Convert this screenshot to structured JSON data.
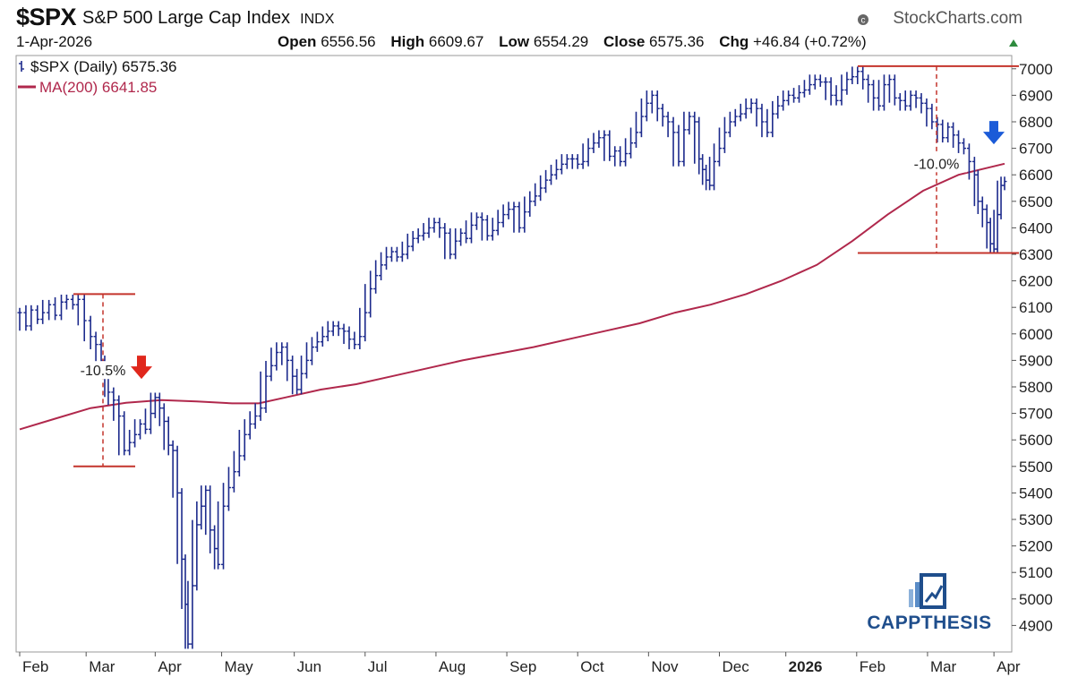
{
  "header": {
    "ticker": "$SPX",
    "name": "S&P 500 Large Cap Index",
    "exchange": "INDX",
    "brand": "StockCharts.com",
    "date": "1-Apr-2026",
    "open_label": "Open",
    "open": "6556.56",
    "high_label": "High",
    "high": "6609.67",
    "low_label": "Low",
    "low": "6554.29",
    "close_label": "Close",
    "close": "6575.36",
    "chg_label": "Chg",
    "chg": "+46.84 (+0.72%)",
    "up_color": "#2e8b3e"
  },
  "logo": {
    "text": "CAPPTHESIS",
    "icon": "bar-chart-logo-icon"
  },
  "chart_data": {
    "type": "line",
    "title": "$SPX S&P 500 Large Cap Index",
    "xlabel": "",
    "ylabel": "",
    "x_ticks": [
      "Feb",
      "Mar",
      "Apr",
      "May",
      "Jun",
      "Jul",
      "Aug",
      "Sep",
      "Oct",
      "Nov",
      "Dec",
      "2026",
      "Feb",
      "Mar",
      "Apr"
    ],
    "ylim": [
      4800,
      7050
    ],
    "y_ticks": [
      4900,
      5000,
      5100,
      5200,
      5300,
      5400,
      5500,
      5600,
      5700,
      5800,
      5900,
      6000,
      6100,
      6200,
      6300,
      6400,
      6500,
      6600,
      6700,
      6800,
      6900,
      7000
    ],
    "legend_placement": "top-left",
    "series": [
      {
        "name": "$SPX (Daily) 6575.36",
        "style": "ohlc-bars",
        "color": "#1c2a8c",
        "points": [
          [
            0,
            6080
          ],
          [
            7,
            6030
          ],
          [
            13,
            6090
          ],
          [
            20,
            6055
          ],
          [
            26,
            6080
          ],
          [
            33,
            6110
          ],
          [
            40,
            6070
          ],
          [
            47,
            6120
          ],
          [
            53,
            6130
          ],
          [
            60,
            6110
          ],
          [
            66,
            6130
          ],
          [
            73,
            6050
          ],
          [
            80,
            5990
          ],
          [
            86,
            5960
          ],
          [
            92,
            5900
          ],
          [
            96,
            5860
          ],
          [
            100,
            5780
          ],
          [
            106,
            5750
          ],
          [
            112,
            5690
          ],
          [
            118,
            5560
          ],
          [
            124,
            5590
          ],
          [
            130,
            5620
          ],
          [
            136,
            5660
          ],
          [
            142,
            5640
          ],
          [
            148,
            5700
          ],
          [
            153,
            5760
          ],
          [
            158,
            5720
          ],
          [
            163,
            5670
          ],
          [
            168,
            5580
          ],
          [
            173,
            5560
          ],
          [
            178,
            5400
          ],
          [
            183,
            5150
          ],
          [
            187,
            4980
          ],
          [
            190,
            4830
          ],
          [
            195,
            5050
          ],
          [
            200,
            5280
          ],
          [
            205,
            5350
          ],
          [
            210,
            5410
          ],
          [
            215,
            5260
          ],
          [
            220,
            5190
          ],
          [
            224,
            5130
          ],
          [
            230,
            5350
          ],
          [
            236,
            5420
          ],
          [
            242,
            5480
          ],
          [
            248,
            5540
          ],
          [
            254,
            5620
          ],
          [
            260,
            5660
          ],
          [
            266,
            5690
          ],
          [
            272,
            5720
          ],
          [
            278,
            5840
          ],
          [
            284,
            5880
          ],
          [
            290,
            5930
          ],
          [
            296,
            5950
          ],
          [
            302,
            5900
          ],
          [
            308,
            5840
          ],
          [
            313,
            5790
          ],
          [
            318,
            5850
          ],
          [
            324,
            5900
          ],
          [
            330,
            5950
          ],
          [
            336,
            5970
          ],
          [
            342,
            5990
          ],
          [
            348,
            6010
          ],
          [
            354,
            6030
          ],
          [
            360,
            6020
          ],
          [
            366,
            6010
          ],
          [
            372,
            5980
          ],
          [
            378,
            5960
          ],
          [
            384,
            5990
          ],
          [
            390,
            6080
          ],
          [
            396,
            6170
          ],
          [
            402,
            6220
          ],
          [
            408,
            6260
          ],
          [
            414,
            6290
          ],
          [
            420,
            6310
          ],
          [
            426,
            6290
          ],
          [
            432,
            6300
          ],
          [
            438,
            6330
          ],
          [
            444,
            6360
          ],
          [
            450,
            6370
          ],
          [
            456,
            6380
          ],
          [
            462,
            6400
          ],
          [
            468,
            6420
          ],
          [
            474,
            6400
          ],
          [
            480,
            6380
          ],
          [
            486,
            6300
          ],
          [
            492,
            6350
          ],
          [
            498,
            6380
          ],
          [
            504,
            6360
          ],
          [
            510,
            6410
          ],
          [
            516,
            6440
          ],
          [
            522,
            6430
          ],
          [
            528,
            6370
          ],
          [
            534,
            6390
          ],
          [
            540,
            6420
          ],
          [
            546,
            6450
          ],
          [
            552,
            6470
          ],
          [
            558,
            6480
          ],
          [
            564,
            6400
          ],
          [
            570,
            6460
          ],
          [
            576,
            6500
          ],
          [
            582,
            6520
          ],
          [
            588,
            6550
          ],
          [
            594,
            6580
          ],
          [
            600,
            6600
          ],
          [
            606,
            6620
          ],
          [
            612,
            6640
          ],
          [
            618,
            6660
          ],
          [
            624,
            6660
          ],
          [
            630,
            6640
          ],
          [
            636,
            6650
          ],
          [
            642,
            6700
          ],
          [
            648,
            6720
          ],
          [
            654,
            6740
          ],
          [
            660,
            6750
          ],
          [
            666,
            6670
          ],
          [
            672,
            6690
          ],
          [
            678,
            6650
          ],
          [
            684,
            6680
          ],
          [
            690,
            6720
          ],
          [
            696,
            6760
          ],
          [
            702,
            6820
          ],
          [
            708,
            6870
          ],
          [
            714,
            6900
          ],
          [
            720,
            6850
          ],
          [
            726,
            6820
          ],
          [
            732,
            6800
          ],
          [
            738,
            6760
          ],
          [
            744,
            6650
          ],
          [
            750,
            6770
          ],
          [
            756,
            6820
          ],
          [
            762,
            6800
          ],
          [
            767,
            6660
          ],
          [
            771,
            6620
          ],
          [
            775,
            6580
          ],
          [
            779,
            6560
          ],
          [
            784,
            6650
          ],
          [
            790,
            6700
          ],
          [
            796,
            6760
          ],
          [
            802,
            6800
          ],
          [
            808,
            6820
          ],
          [
            814,
            6830
          ],
          [
            820,
            6850
          ],
          [
            826,
            6870
          ],
          [
            832,
            6850
          ],
          [
            838,
            6800
          ],
          [
            844,
            6760
          ],
          [
            850,
            6830
          ],
          [
            856,
            6860
          ],
          [
            862,
            6880
          ],
          [
            868,
            6900
          ],
          [
            874,
            6890
          ],
          [
            880,
            6910
          ],
          [
            886,
            6920
          ],
          [
            892,
            6940
          ],
          [
            898,
            6960
          ],
          [
            904,
            6950
          ],
          [
            910,
            6950
          ],
          [
            916,
            6900
          ],
          [
            922,
            6880
          ],
          [
            928,
            6920
          ],
          [
            934,
            6960
          ],
          [
            940,
            6970
          ],
          [
            946,
            6990
          ],
          [
            952,
            6960
          ],
          [
            958,
            6940
          ],
          [
            964,
            6890
          ],
          [
            970,
            6860
          ],
          [
            976,
            6940
          ],
          [
            982,
            6960
          ],
          [
            988,
            6890
          ],
          [
            994,
            6880
          ],
          [
            1000,
            6860
          ],
          [
            1006,
            6900
          ],
          [
            1012,
            6890
          ],
          [
            1018,
            6870
          ],
          [
            1024,
            6850
          ],
          [
            1030,
            6800
          ],
          [
            1036,
            6790
          ],
          [
            1042,
            6740
          ],
          [
            1048,
            6780
          ],
          [
            1054,
            6750
          ],
          [
            1060,
            6720
          ],
          [
            1066,
            6700
          ],
          [
            1072,
            6650
          ],
          [
            1078,
            6600
          ],
          [
            1082,
            6500
          ],
          [
            1087,
            6470
          ],
          [
            1092,
            6420
          ],
          [
            1096,
            6340
          ],
          [
            1100,
            6320
          ],
          [
            1104,
            6450
          ],
          [
            1108,
            6560
          ],
          [
            1112,
            6575
          ]
        ]
      },
      {
        "name": "MA(200) 6641.85",
        "style": "line",
        "color": "#b0284c",
        "points": [
          [
            0,
            5640
          ],
          [
            40,
            5680
          ],
          [
            80,
            5720
          ],
          [
            120,
            5740
          ],
          [
            160,
            5750
          ],
          [
            200,
            5745
          ],
          [
            240,
            5738
          ],
          [
            270,
            5738
          ],
          [
            300,
            5760
          ],
          [
            340,
            5790
          ],
          [
            380,
            5810
          ],
          [
            420,
            5840
          ],
          [
            460,
            5870
          ],
          [
            500,
            5900
          ],
          [
            540,
            5925
          ],
          [
            580,
            5950
          ],
          [
            620,
            5980
          ],
          [
            660,
            6010
          ],
          [
            700,
            6040
          ],
          [
            740,
            6080
          ],
          [
            780,
            6110
          ],
          [
            820,
            6150
          ],
          [
            860,
            6200
          ],
          [
            900,
            6260
          ],
          [
            940,
            6350
          ],
          [
            980,
            6450
          ],
          [
            1020,
            6540
          ],
          [
            1060,
            6600
          ],
          [
            1112,
            6641.85
          ]
        ]
      }
    ],
    "annotations": [
      {
        "label": "-10.5%",
        "high": 6150,
        "low": 5500,
        "x_start": 64,
        "x_end": 133,
        "x_drop": 97,
        "text_at": 5850
      },
      {
        "label": "-10.0%",
        "high": 7010,
        "low": 6305,
        "x_start": 940,
        "x_end": 1120,
        "x_drop": 1028,
        "text_at": 6630
      }
    ],
    "arrows": [
      {
        "color": "#e0271c",
        "x": 158,
        "tip": 5830,
        "direction": "down"
      },
      {
        "color": "#1b5bd8",
        "x": 1110,
        "tip": 6715,
        "direction": "down"
      }
    ]
  }
}
